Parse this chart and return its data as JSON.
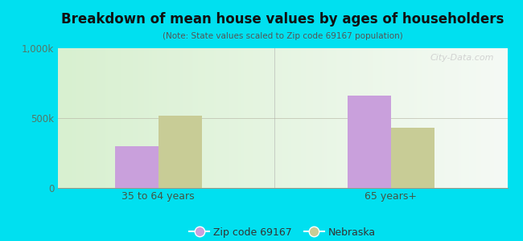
{
  "title": "Breakdown of mean house values by ages of householders",
  "subtitle": "(Note: State values scaled to Zip code 69167 population)",
  "categories": [
    "35 to 64 years",
    "65 years+"
  ],
  "zip_values": [
    300000,
    660000
  ],
  "state_values": [
    520000,
    430000
  ],
  "zip_color": "#c9a0dc",
  "state_color": "#c8cc96",
  "ylim": [
    0,
    1000000
  ],
  "ytick_labels": [
    "0",
    "500k",
    "1,000k"
  ],
  "ytick_values": [
    0,
    500000,
    1000000
  ],
  "background_outer": "#00e0f0",
  "grad_left": "#d8f0d0",
  "grad_right": "#f5faf5",
  "legend_zip_label": "Zip code 69167",
  "legend_state_label": "Nebraska",
  "watermark": "City-Data.com",
  "bar_width": 0.28,
  "group_positions": [
    0.75,
    2.25
  ]
}
